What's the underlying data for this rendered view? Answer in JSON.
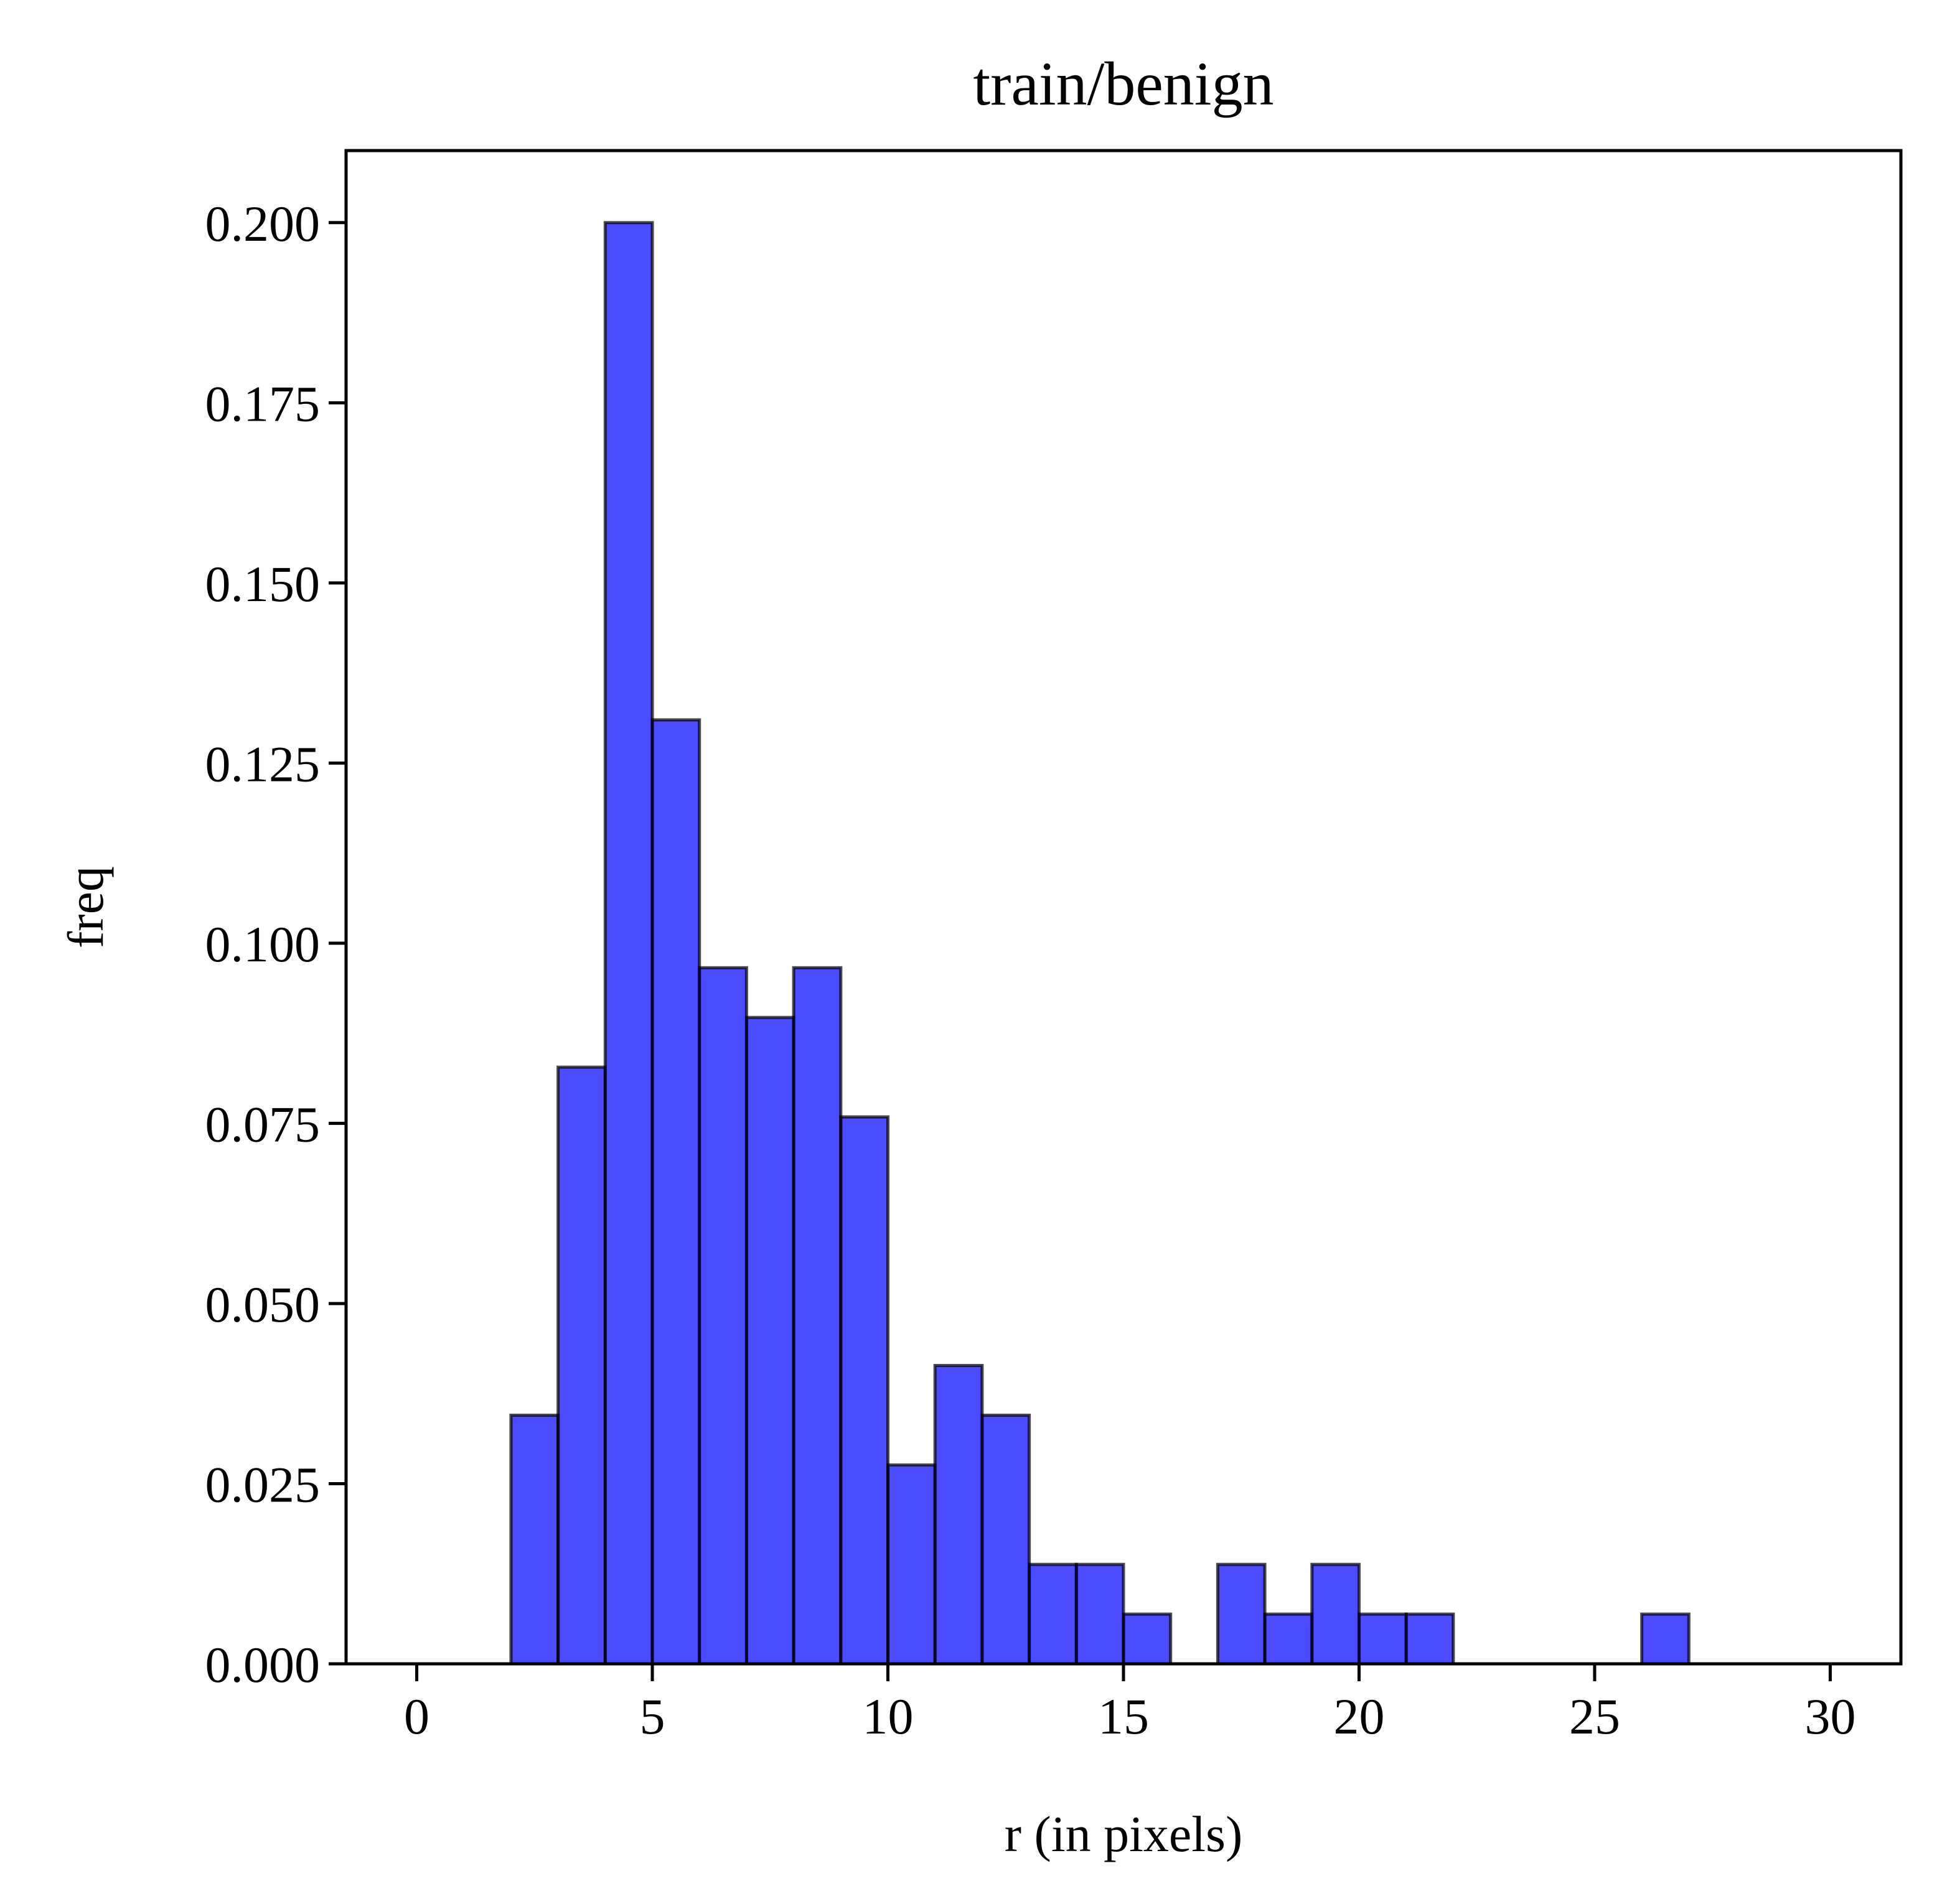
{
  "chart_data": {
    "type": "bar",
    "title": "train/benign",
    "xlabel": "r (in pixels)",
    "ylabel": "freq",
    "xlim": [
      -1.5,
      31.5
    ],
    "ylim": [
      0,
      0.21
    ],
    "xticks": [
      0,
      5,
      10,
      15,
      20,
      25,
      30
    ],
    "xtick_labels": [
      "0",
      "5",
      "10",
      "15",
      "20",
      "25",
      "30"
    ],
    "yticks": [
      0.0,
      0.025,
      0.05,
      0.075,
      0.1,
      0.125,
      0.15,
      0.175,
      0.2
    ],
    "ytick_labels": [
      "0.000",
      "0.025",
      "0.050",
      "0.075",
      "0.100",
      "0.125",
      "0.150",
      "0.175",
      "0.200"
    ],
    "bin_edges": [
      0,
      1,
      2,
      3,
      4,
      5,
      6,
      7,
      8,
      9,
      10,
      11,
      12,
      13,
      14,
      15,
      16,
      17,
      18,
      19,
      20,
      21,
      22,
      23,
      24,
      25,
      26,
      27,
      28,
      29,
      30
    ],
    "values": [
      0,
      0,
      0.0345,
      0.0828,
      0.2,
      0.131,
      0.0966,
      0.0897,
      0.0966,
      0.0759,
      0.0276,
      0.0414,
      0.0345,
      0.0138,
      0.0138,
      0.0069,
      0,
      0.0138,
      0.0069,
      0.0138,
      0.0069,
      0.0069,
      0,
      0,
      0,
      0,
      0.0069,
      0,
      0,
      0
    ],
    "bar_color": "#0000ff",
    "bar_opacity": 0.7,
    "edge_color": "#000000",
    "grid": false,
    "legend": "none"
  }
}
